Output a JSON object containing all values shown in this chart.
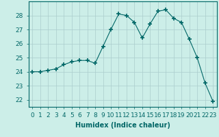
{
  "x": [
    0,
    1,
    2,
    3,
    4,
    5,
    6,
    7,
    8,
    9,
    10,
    11,
    12,
    13,
    14,
    15,
    16,
    17,
    18,
    19,
    20,
    21,
    22,
    23
  ],
  "y": [
    24.0,
    24.0,
    24.1,
    24.2,
    24.5,
    24.7,
    24.8,
    24.8,
    24.6,
    25.8,
    27.0,
    28.1,
    28.0,
    27.5,
    26.4,
    27.4,
    28.3,
    28.4,
    27.8,
    27.5,
    26.3,
    25.0,
    23.2,
    21.9
  ],
  "line_color": "#006666",
  "marker": "+",
  "marker_size": 4,
  "bg_color": "#cceee8",
  "grid_color": "#aacccc",
  "xlabel": "Humidex (Indice chaleur)",
  "xlim": [
    -0.5,
    23.5
  ],
  "ylim": [
    21.5,
    29.0
  ],
  "yticks": [
    22,
    23,
    24,
    25,
    26,
    27,
    28
  ],
  "xtick_labels": [
    "0",
    "1",
    "2",
    "3",
    "4",
    "5",
    "6",
    "7",
    "8",
    "9",
    "10",
    "11",
    "12",
    "13",
    "14",
    "15",
    "16",
    "17",
    "18",
    "19",
    "20",
    "21",
    "22",
    "23"
  ],
  "label_fontsize": 7,
  "tick_fontsize": 6.5
}
